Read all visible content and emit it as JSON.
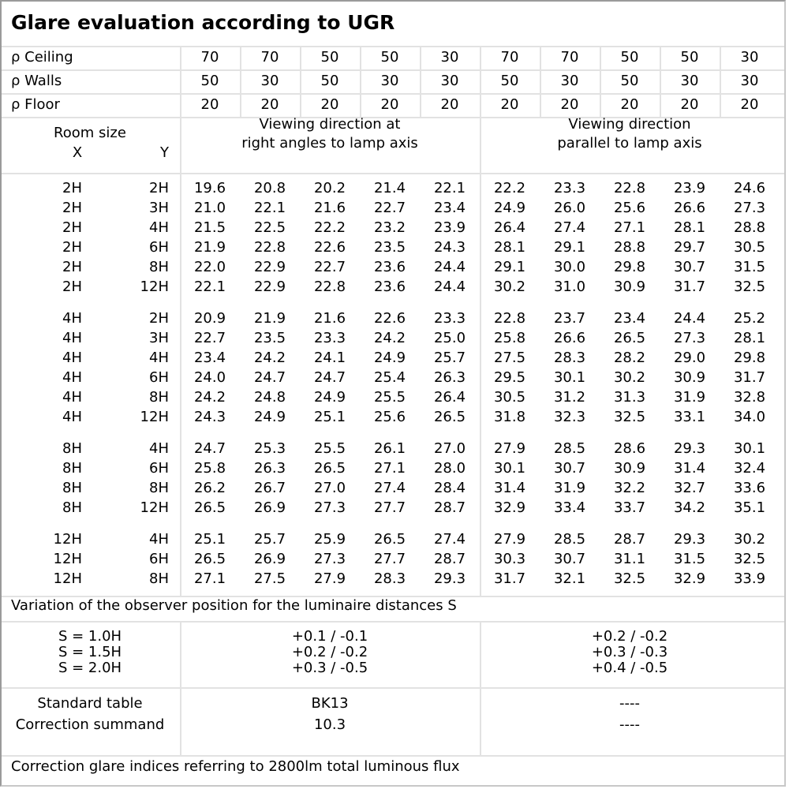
{
  "title": "Glare evaluation according to UGR",
  "reflectances": [
    {
      "label": "ρ Ceiling",
      "values": [
        "70",
        "70",
        "50",
        "50",
        "30",
        "70",
        "70",
        "50",
        "50",
        "30"
      ]
    },
    {
      "label": "ρ Walls",
      "values": [
        "50",
        "30",
        "50",
        "30",
        "30",
        "50",
        "30",
        "50",
        "30",
        "30"
      ]
    },
    {
      "label": "ρ Floor",
      "values": [
        "20",
        "20",
        "20",
        "20",
        "20",
        "20",
        "20",
        "20",
        "20",
        "20"
      ]
    }
  ],
  "header": {
    "room_size": "Room size",
    "x": "X",
    "y": "Y",
    "right_angles": [
      "Viewing direction at",
      "right angles to lamp axis"
    ],
    "parallel": [
      "Viewing direction",
      "parallel to lamp axis"
    ]
  },
  "groups": [
    {
      "rows": [
        {
          "x": "2H",
          "y": "2H",
          "v": [
            "19.6",
            "20.8",
            "20.2",
            "21.4",
            "22.1",
            "22.2",
            "23.3",
            "22.8",
            "23.9",
            "24.6"
          ]
        },
        {
          "x": "2H",
          "y": "3H",
          "v": [
            "21.0",
            "22.1",
            "21.6",
            "22.7",
            "23.4",
            "24.9",
            "26.0",
            "25.6",
            "26.6",
            "27.3"
          ]
        },
        {
          "x": "2H",
          "y": "4H",
          "v": [
            "21.5",
            "22.5",
            "22.2",
            "23.2",
            "23.9",
            "26.4",
            "27.4",
            "27.1",
            "28.1",
            "28.8"
          ]
        },
        {
          "x": "2H",
          "y": "6H",
          "v": [
            "21.9",
            "22.8",
            "22.6",
            "23.5",
            "24.3",
            "28.1",
            "29.1",
            "28.8",
            "29.7",
            "30.5"
          ]
        },
        {
          "x": "2H",
          "y": "8H",
          "v": [
            "22.0",
            "22.9",
            "22.7",
            "23.6",
            "24.4",
            "29.1",
            "30.0",
            "29.8",
            "30.7",
            "31.5"
          ]
        },
        {
          "x": "2H",
          "y": "12H",
          "v": [
            "22.1",
            "22.9",
            "22.8",
            "23.6",
            "24.4",
            "30.2",
            "31.0",
            "30.9",
            "31.7",
            "32.5"
          ]
        }
      ]
    },
    {
      "rows": [
        {
          "x": "4H",
          "y": "2H",
          "v": [
            "20.9",
            "21.9",
            "21.6",
            "22.6",
            "23.3",
            "22.8",
            "23.7",
            "23.4",
            "24.4",
            "25.2"
          ]
        },
        {
          "x": "4H",
          "y": "3H",
          "v": [
            "22.7",
            "23.5",
            "23.3",
            "24.2",
            "25.0",
            "25.8",
            "26.6",
            "26.5",
            "27.3",
            "28.1"
          ]
        },
        {
          "x": "4H",
          "y": "4H",
          "v": [
            "23.4",
            "24.2",
            "24.1",
            "24.9",
            "25.7",
            "27.5",
            "28.3",
            "28.2",
            "29.0",
            "29.8"
          ]
        },
        {
          "x": "4H",
          "y": "6H",
          "v": [
            "24.0",
            "24.7",
            "24.7",
            "25.4",
            "26.3",
            "29.5",
            "30.1",
            "30.2",
            "30.9",
            "31.7"
          ]
        },
        {
          "x": "4H",
          "y": "8H",
          "v": [
            "24.2",
            "24.8",
            "24.9",
            "25.5",
            "26.4",
            "30.5",
            "31.2",
            "31.3",
            "31.9",
            "32.8"
          ]
        },
        {
          "x": "4H",
          "y": "12H",
          "v": [
            "24.3",
            "24.9",
            "25.1",
            "25.6",
            "26.5",
            "31.8",
            "32.3",
            "32.5",
            "33.1",
            "34.0"
          ]
        }
      ]
    },
    {
      "rows": [
        {
          "x": "8H",
          "y": "4H",
          "v": [
            "24.7",
            "25.3",
            "25.5",
            "26.1",
            "27.0",
            "27.9",
            "28.5",
            "28.6",
            "29.3",
            "30.1"
          ]
        },
        {
          "x": "8H",
          "y": "6H",
          "v": [
            "25.8",
            "26.3",
            "26.5",
            "27.1",
            "28.0",
            "30.1",
            "30.7",
            "30.9",
            "31.4",
            "32.4"
          ]
        },
        {
          "x": "8H",
          "y": "8H",
          "v": [
            "26.2",
            "26.7",
            "27.0",
            "27.4",
            "28.4",
            "31.4",
            "31.9",
            "32.2",
            "32.7",
            "33.6"
          ]
        },
        {
          "x": "8H",
          "y": "12H",
          "v": [
            "26.5",
            "26.9",
            "27.3",
            "27.7",
            "28.7",
            "32.9",
            "33.4",
            "33.7",
            "34.2",
            "35.1"
          ]
        }
      ]
    },
    {
      "rows": [
        {
          "x": "12H",
          "y": "4H",
          "v": [
            "25.1",
            "25.7",
            "25.9",
            "26.5",
            "27.4",
            "27.9",
            "28.5",
            "28.7",
            "29.3",
            "30.2"
          ]
        },
        {
          "x": "12H",
          "y": "6H",
          "v": [
            "26.5",
            "26.9",
            "27.3",
            "27.7",
            "28.7",
            "30.3",
            "30.7",
            "31.1",
            "31.5",
            "32.5"
          ]
        },
        {
          "x": "12H",
          "y": "8H",
          "v": [
            "27.1",
            "27.5",
            "27.9",
            "28.3",
            "29.3",
            "31.7",
            "32.1",
            "32.5",
            "32.9",
            "33.9"
          ]
        }
      ]
    }
  ],
  "variation": {
    "label": "Variation of the observer position for the luminaire distances S",
    "rows": [
      {
        "s": "S = 1.0H",
        "right": "+0.1 / -0.1",
        "parallel": "+0.2 / -0.2"
      },
      {
        "s": "S = 1.5H",
        "right": "+0.2 / -0.2",
        "parallel": "+0.3 / -0.3"
      },
      {
        "s": "S = 2.0H",
        "right": "+0.3 / -0.5",
        "parallel": "+0.4 / -0.5"
      }
    ]
  },
  "standard": {
    "table_label": "Standard table",
    "table_right": "BK13",
    "table_parallel": "----",
    "correction_label": "Correction summand",
    "correction_right": "10.3",
    "correction_parallel": "----"
  },
  "footer": "Correction glare indices referring to 2800lm total luminous flux"
}
